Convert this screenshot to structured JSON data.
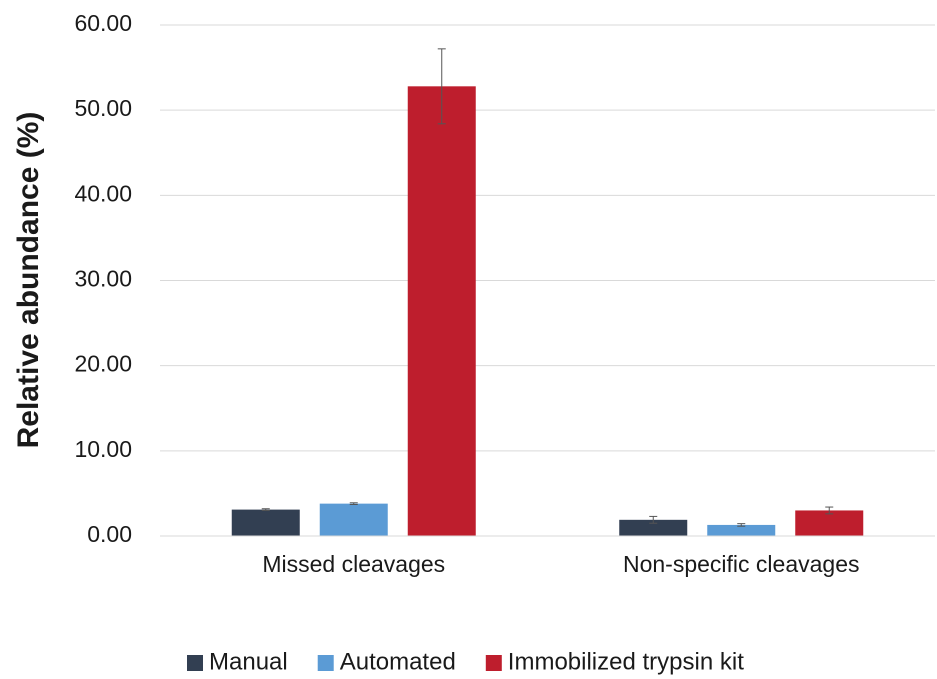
{
  "chart_data": {
    "type": "bar",
    "y_label": "Relative abundance (%)",
    "categories": [
      "Missed cleavages",
      "Non-specific cleavages"
    ],
    "series": [
      {
        "name": "Manual",
        "color": "#323f52",
        "values": [
          3.1,
          1.9
        ],
        "errors": [
          0.1,
          0.4
        ]
      },
      {
        "name": "Automated",
        "color": "#5b9bd5",
        "values": [
          3.8,
          1.3
        ],
        "errors": [
          0.1,
          0.15
        ]
      },
      {
        "name": "Immobilized trypsin kit",
        "color": "#be1e2d",
        "values": [
          52.8,
          3.0
        ],
        "errors": [
          4.4,
          0.4
        ]
      }
    ],
    "ylim": [
      0,
      60
    ],
    "yticks": [
      {
        "value": 0,
        "label": "0.00"
      },
      {
        "value": 10,
        "label": "10.00"
      },
      {
        "value": 20,
        "label": "20.00"
      },
      {
        "value": 30,
        "label": "30.00"
      },
      {
        "value": 40,
        "label": "40.00"
      },
      {
        "value": 50,
        "label": "50.00"
      },
      {
        "value": 60,
        "label": "60.00"
      }
    ],
    "grid": true,
    "legend": "bottom"
  }
}
